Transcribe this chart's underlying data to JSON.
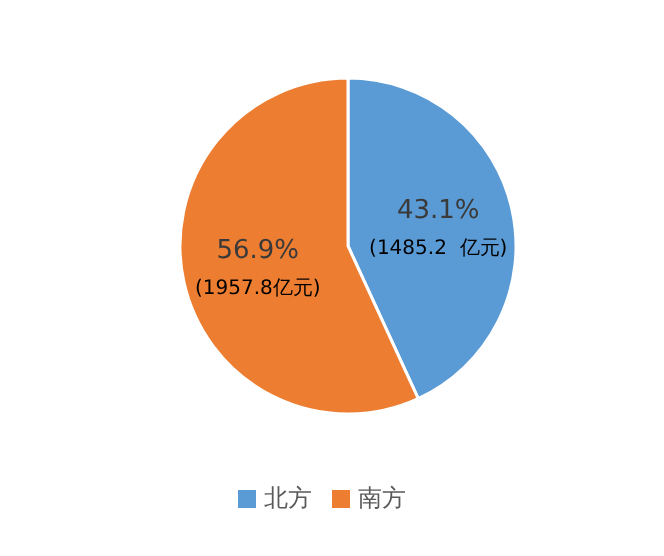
{
  "chart_data": {
    "type": "pie",
    "categories": [
      "北方",
      "南方"
    ],
    "values": [
      1485.2,
      1957.8
    ],
    "colors": [
      "#5b9bd5",
      "#ed7d31"
    ],
    "value_labels": [
      "43.1%\n(1485.2  亿元)",
      "56.9%\n(1957.8亿元)"
    ],
    "legend": "bottom"
  }
}
